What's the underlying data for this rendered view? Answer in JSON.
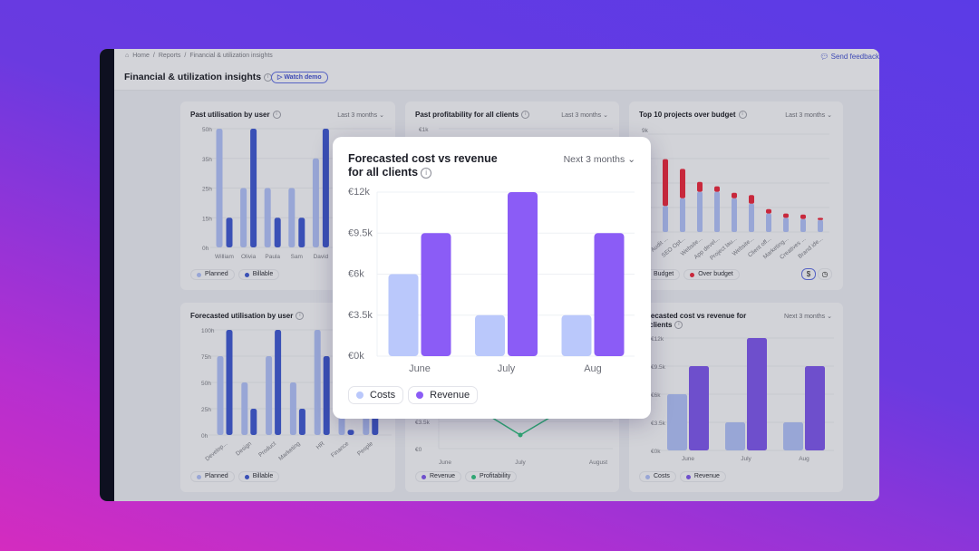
{
  "breadcrumb": [
    "Home",
    "Reports",
    "Financial & utilization insights"
  ],
  "header": {
    "title": "Financial & utilization insights",
    "watch_demo": "Watch demo",
    "send_feedback": "Send feedback"
  },
  "cards": {
    "past_util": {
      "title": "Past utilisation by user",
      "range": "Last 3 months",
      "legend": [
        "Planned",
        "Billable"
      ]
    },
    "past_profit": {
      "title": "Past profitability for all clients",
      "range": "Last 3 months"
    },
    "top10": {
      "title": "Top 10 projects over budget",
      "range": "Last 3 months",
      "legend": [
        "Budget",
        "Over budget"
      ],
      "toggle": [
        "$",
        "clock-icon"
      ]
    },
    "forecast_util": {
      "title": "Forecasted  utilisation by user",
      "legend": [
        "Planned",
        "Billable"
      ]
    },
    "forecast_profit": {
      "legend": [
        "Revenue",
        "Profitability"
      ]
    },
    "forecast_cost": {
      "title": "Forecasted cost vs revenue for all clients",
      "range": "Next 3 months",
      "legend": [
        "Costs",
        "Revenue"
      ]
    }
  },
  "popup": {
    "title": "Forecasted cost vs revenue for all clients",
    "range": "Next 3 months",
    "legend": [
      "Costs",
      "Revenue"
    ]
  },
  "colors": {
    "planned": "#98a6d6",
    "billable": "#3a50b6",
    "over_budget": "#c8283c",
    "costs_dim": "#98a6d6",
    "revenue_dim": "#6e4fcc",
    "profitability": "#2fa673",
    "costs": "#bac8fb",
    "revenue": "#8b5cf6"
  },
  "chart_data": [
    {
      "id": "past_util",
      "type": "bar",
      "title": "Past utilisation by user",
      "yticks": [
        "0h",
        "15h",
        "25h",
        "35h",
        "50h"
      ],
      "ytick_values": [
        0,
        15,
        25,
        35,
        50
      ],
      "categories": [
        "William",
        "Olivia",
        "Paula",
        "Sam",
        "David"
      ],
      "series": [
        {
          "name": "Planned",
          "values": [
            50,
            25,
            25,
            25,
            35
          ]
        },
        {
          "name": "Billable",
          "values": [
            15,
            50,
            15,
            15,
            50
          ]
        }
      ]
    },
    {
      "id": "past_profit",
      "type": "line",
      "title": "Past profitability for all clients",
      "yticks": [
        "€1k"
      ]
    },
    {
      "id": "top10",
      "type": "bar",
      "stacked": true,
      "title": "Top 10 projects over budget",
      "yticks": [
        "9k"
      ],
      "ylim": [
        0,
        9000
      ],
      "categories": [
        "SEO Audit ...",
        "SEO Opt...",
        "Website...",
        "App devel...",
        "Project lau...",
        "Website...",
        "Client off...",
        "Marketing...",
        "Creatives ...",
        "Brand ide..."
      ],
      "series": [
        {
          "name": "Budget",
          "values": [
            2400,
            3100,
            3700,
            3700,
            3100,
            2600,
            1700,
            1300,
            1200,
            1100
          ]
        },
        {
          "name": "Over budget",
          "values": [
            4300,
            2700,
            900,
            500,
            500,
            800,
            400,
            400,
            400,
            200
          ]
        }
      ]
    },
    {
      "id": "forecast_util",
      "type": "bar",
      "title": "Forecasted  utilisation by user",
      "yticks": [
        "0h",
        "25h",
        "50h",
        "75h",
        "100h"
      ],
      "ytick_values": [
        0,
        25,
        50,
        75,
        100
      ],
      "categories": [
        "Develop...",
        "Design",
        "Product",
        "Marketing",
        "HR",
        "Finance",
        "People"
      ],
      "series": [
        {
          "name": "Planned",
          "values": [
            75,
            50,
            75,
            50,
            100,
            25,
            25
          ]
        },
        {
          "name": "Billable",
          "values": [
            100,
            25,
            100,
            25,
            75,
            5,
            50
          ]
        }
      ]
    },
    {
      "id": "forecast_profit",
      "type": "line",
      "yticks": [
        "€0",
        "€3.5k"
      ],
      "ytick_values": [
        0,
        3500
      ],
      "categories": [
        "June",
        "July",
        "August"
      ],
      "series": [
        {
          "name": "Profitability",
          "values": [
            7700,
            1750,
            7700
          ]
        }
      ]
    },
    {
      "id": "forecast_cost",
      "type": "bar",
      "title": "Forecasted cost vs revenue for all clients",
      "yticks": [
        "€0k",
        "€3.5k",
        "€6k",
        "€9.5k",
        "€12k"
      ],
      "ytick_values": [
        0,
        3500,
        6000,
        9500,
        12000
      ],
      "categories": [
        "June",
        "July",
        "Aug"
      ],
      "series": [
        {
          "name": "Costs",
          "values": [
            6000,
            3500,
            3500
          ]
        },
        {
          "name": "Revenue",
          "values": [
            9500,
            12000,
            9500
          ]
        }
      ]
    },
    {
      "id": "popup",
      "type": "bar",
      "title": "Forecasted cost vs revenue for all clients",
      "yticks": [
        "€0k",
        "€3.5k",
        "€6k",
        "€9.5k",
        "€12k"
      ],
      "ytick_values": [
        0,
        3500,
        6000,
        9500,
        12000
      ],
      "categories": [
        "June",
        "July",
        "Aug"
      ],
      "series": [
        {
          "name": "Costs",
          "values": [
            6000,
            3500,
            3500
          ]
        },
        {
          "name": "Revenue",
          "values": [
            9500,
            12000,
            9500
          ]
        }
      ]
    }
  ]
}
